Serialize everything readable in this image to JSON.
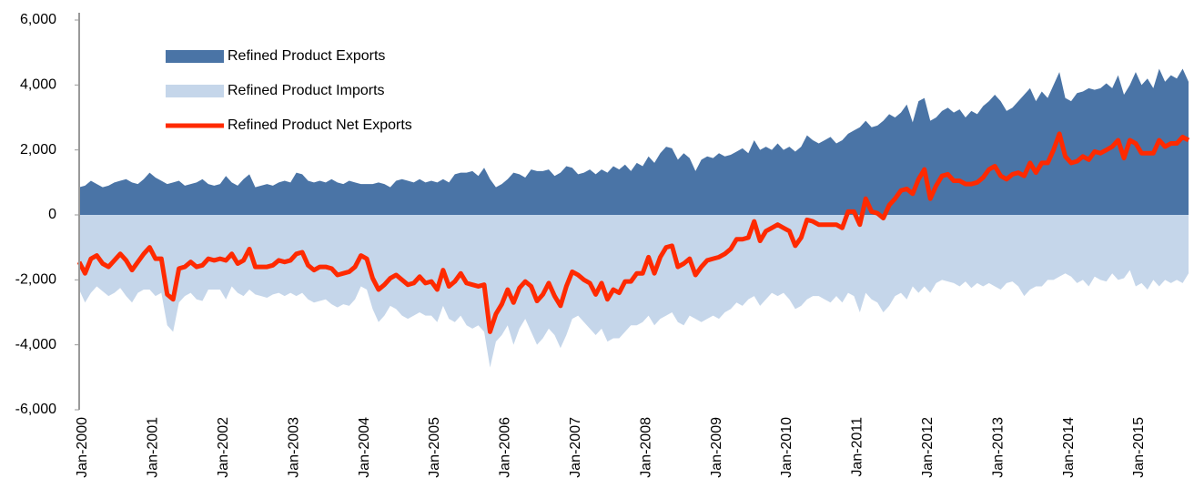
{
  "chart_data": {
    "type": "area-line",
    "categories": [
      "Jan-2000",
      null,
      null,
      null,
      null,
      null,
      null,
      null,
      null,
      null,
      null,
      null,
      "Jan-2001",
      null,
      null,
      null,
      null,
      null,
      null,
      null,
      null,
      null,
      null,
      null,
      "Jan-2002",
      null,
      null,
      null,
      null,
      null,
      null,
      null,
      null,
      null,
      null,
      null,
      "Jan-2003",
      null,
      null,
      null,
      null,
      null,
      null,
      null,
      null,
      null,
      null,
      null,
      "Jan-2004",
      null,
      null,
      null,
      null,
      null,
      null,
      null,
      null,
      null,
      null,
      null,
      "Jan-2005",
      null,
      null,
      null,
      null,
      null,
      null,
      null,
      null,
      null,
      null,
      null,
      "Jan-2006",
      null,
      null,
      null,
      null,
      null,
      null,
      null,
      null,
      null,
      null,
      null,
      "Jan-2007",
      null,
      null,
      null,
      null,
      null,
      null,
      null,
      null,
      null,
      null,
      null,
      "Jan-2008",
      null,
      null,
      null,
      null,
      null,
      null,
      null,
      null,
      null,
      null,
      null,
      "Jan-2009",
      null,
      null,
      null,
      null,
      null,
      null,
      null,
      null,
      null,
      null,
      null,
      "Jan-2010",
      null,
      null,
      null,
      null,
      null,
      null,
      null,
      null,
      null,
      null,
      null,
      "Jan-2011",
      null,
      null,
      null,
      null,
      null,
      null,
      null,
      null,
      null,
      null,
      null,
      "Jan-2012",
      null,
      null,
      null,
      null,
      null,
      null,
      null,
      null,
      null,
      null,
      null,
      "Jan-2013",
      null,
      null,
      null,
      null,
      null,
      null,
      null,
      null,
      null,
      null,
      null,
      "Jan-2014",
      null,
      null,
      null,
      null,
      null,
      null,
      null,
      null,
      null,
      null,
      null,
      "Jan-2015",
      null,
      null,
      null,
      null,
      null,
      null,
      null,
      null,
      null
    ],
    "series": [
      {
        "name": "Refined Product Exports",
        "kind": "area",
        "color": "#4a74a6",
        "values": [
          850,
          900,
          1050,
          950,
          850,
          900,
          1000,
          1050,
          1100,
          1000,
          950,
          1100,
          1300,
          1150,
          1050,
          950,
          1000,
          1050,
          900,
          950,
          1000,
          1100,
          950,
          900,
          950,
          1200,
          1000,
          900,
          1100,
          1250,
          850,
          900,
          950,
          900,
          1000,
          1050,
          1000,
          1300,
          1250,
          1050,
          1000,
          1050,
          1000,
          1100,
          1000,
          950,
          1050,
          1000,
          950,
          950,
          950,
          1000,
          950,
          850,
          1050,
          1100,
          1050,
          1000,
          1100,
          1000,
          1050,
          1000,
          1100,
          1000,
          1250,
          1300,
          1300,
          1350,
          1200,
          1450,
          1100,
          850,
          950,
          1100,
          1300,
          1250,
          1150,
          1400,
          1350,
          1350,
          1400,
          1200,
          1300,
          1500,
          1450,
          1250,
          1300,
          1400,
          1250,
          1400,
          1300,
          1500,
          1400,
          1550,
          1350,
          1600,
          1500,
          1800,
          1600,
          1900,
          2100,
          2050,
          1700,
          1900,
          1750,
          1350,
          1700,
          1800,
          1750,
          1900,
          1800,
          1850,
          1950,
          2050,
          1900,
          2300,
          2000,
          2100,
          2000,
          2200,
          2000,
          2100,
          1950,
          2100,
          2450,
          2300,
          2200,
          2300,
          2400,
          2200,
          2300,
          2500,
          2600,
          2700,
          2900,
          2700,
          2750,
          2900,
          3100,
          3000,
          3150,
          3400,
          2850,
          3500,
          3600,
          2900,
          3000,
          3200,
          3300,
          3150,
          3250,
          3000,
          3200,
          3100,
          3350,
          3500,
          3700,
          3500,
          3200,
          3300,
          3500,
          3700,
          3900,
          3500,
          3800,
          3600,
          4000,
          4400,
          3600,
          3500,
          3750,
          3800,
          3900,
          3850,
          3900,
          4050,
          3900,
          4300,
          3700,
          4000,
          4400,
          4000,
          4200,
          3900,
          4500,
          4100,
          4300,
          4200,
          4500,
          4100
        ]
      },
      {
        "name": "Refined Product Imports",
        "kind": "area",
        "color": "#c5d6ea",
        "values": [
          -2300,
          -2700,
          -2400,
          -2200,
          -2350,
          -2500,
          -2400,
          -2250,
          -2500,
          -2700,
          -2400,
          -2300,
          -2300,
          -2500,
          -2400,
          -3400,
          -3600,
          -2700,
          -2500,
          -2400,
          -2600,
          -2650,
          -2300,
          -2300,
          -2300,
          -2600,
          -2200,
          -2400,
          -2500,
          -2300,
          -2450,
          -2500,
          -2550,
          -2450,
          -2400,
          -2500,
          -2400,
          -2500,
          -2400,
          -2600,
          -2700,
          -2650,
          -2600,
          -2750,
          -2850,
          -2750,
          -2800,
          -2600,
          -2200,
          -2300,
          -2900,
          -3300,
          -3100,
          -2800,
          -2900,
          -3100,
          -3200,
          -3100,
          -3000,
          -3100,
          -3100,
          -3300,
          -2800,
          -3200,
          -3300,
          -3100,
          -3400,
          -3500,
          -3400,
          -3600,
          -4700,
          -3900,
          -3700,
          -3400,
          -4000,
          -3500,
          -3200,
          -3600,
          -4000,
          -3800,
          -3500,
          -3700,
          -4100,
          -3700,
          -3200,
          -3100,
          -3300,
          -3500,
          -3700,
          -3500,
          -3900,
          -3800,
          -3800,
          -3600,
          -3400,
          -3400,
          -3300,
          -3100,
          -3400,
          -3200,
          -3100,
          -3000,
          -3300,
          -3400,
          -3100,
          -3200,
          -3300,
          -3200,
          -3100,
          -3200,
          -3000,
          -2900,
          -2700,
          -2800,
          -2600,
          -2500,
          -2800,
          -2600,
          -2400,
          -2500,
          -2400,
          -2600,
          -2900,
          -2800,
          -2600,
          -2500,
          -2500,
          -2600,
          -2700,
          -2500,
          -2700,
          -2400,
          -2500,
          -3000,
          -2400,
          -2600,
          -2700,
          -3000,
          -2800,
          -2500,
          -2400,
          -2600,
          -2200,
          -2400,
          -2200,
          -2400,
          -2100,
          -2000,
          -2050,
          -2100,
          -2200,
          -2050,
          -2250,
          -2100,
          -2200,
          -2100,
          -2200,
          -2300,
          -2100,
          -2050,
          -2200,
          -2500,
          -2300,
          -2200,
          -2200,
          -2000,
          -2000,
          -1900,
          -1800,
          -1900,
          -2100,
          -2000,
          -2200,
          -1900,
          -2000,
          -2050,
          -1800,
          -2000,
          -1950,
          -1700,
          -2200,
          -2100,
          -2300,
          -2000,
          -2200,
          -2000,
          -2100,
          -2000,
          -2100,
          -1800
        ]
      },
      {
        "name": "Refined Product Net Exports",
        "kind": "line",
        "color": "#ff2a00",
        "values": [
          -1450,
          -1800,
          -1350,
          -1250,
          -1500,
          -1600,
          -1400,
          -1200,
          -1400,
          -1700,
          -1450,
          -1200,
          -1000,
          -1350,
          -1350,
          -2450,
          -2600,
          -1650,
          -1600,
          -1450,
          -1600,
          -1550,
          -1350,
          -1400,
          -1350,
          -1400,
          -1200,
          -1500,
          -1400,
          -1050,
          -1600,
          -1600,
          -1600,
          -1550,
          -1400,
          -1450,
          -1400,
          -1200,
          -1150,
          -1550,
          -1700,
          -1600,
          -1600,
          -1650,
          -1850,
          -1800,
          -1750,
          -1600,
          -1250,
          -1350,
          -1950,
          -2300,
          -2150,
          -1950,
          -1850,
          -2000,
          -2150,
          -2100,
          -1900,
          -2100,
          -2050,
          -2300,
          -1700,
          -2200,
          -2050,
          -1800,
          -2100,
          -2150,
          -2200,
          -2150,
          -3600,
          -3050,
          -2750,
          -2300,
          -2700,
          -2250,
          -2050,
          -2200,
          -2650,
          -2450,
          -2100,
          -2500,
          -2800,
          -2200,
          -1750,
          -1850,
          -2000,
          -2100,
          -2450,
          -2100,
          -2600,
          -2300,
          -2400,
          -2050,
          -2050,
          -1800,
          -1800,
          -1300,
          -1800,
          -1300,
          -1000,
          -950,
          -1600,
          -1500,
          -1350,
          -1850,
          -1600,
          -1400,
          -1350,
          -1300,
          -1200,
          -1050,
          -750,
          -750,
          -700,
          -200,
          -800,
          -500,
          -400,
          -300,
          -400,
          -500,
          -950,
          -700,
          -150,
          -200,
          -300,
          -300,
          -300,
          -300,
          -400,
          100,
          100,
          -300,
          500,
          100,
          50,
          -100,
          300,
          500,
          750,
          800,
          650,
          1100,
          1400,
          500,
          900,
          1200,
          1250,
          1050,
          1050,
          950,
          950,
          1000,
          1150,
          1400,
          1500,
          1200,
          1100,
          1250,
          1300,
          1200,
          1600,
          1300,
          1600,
          1600,
          2000,
          2500,
          1800,
          1600,
          1650,
          1800,
          1700,
          1950,
          1900,
          2000,
          2100,
          2300,
          1750,
          2300,
          2200,
          1900,
          1900,
          1900,
          2300,
          2100,
          2200,
          2200,
          2400,
          2300
        ]
      }
    ],
    "ylim": [
      -6000,
      6000
    ],
    "yticks": [
      {
        "value": -6000,
        "label": "-6,000"
      },
      {
        "value": -4000,
        "label": "-4,000"
      },
      {
        "value": -2000,
        "label": "-2,000"
      },
      0,
      {
        "value": 2000,
        "label": "2,000"
      },
      {
        "value": 4000,
        "label": "4,000"
      },
      {
        "value": 6000,
        "label": "6,000"
      }
    ]
  }
}
